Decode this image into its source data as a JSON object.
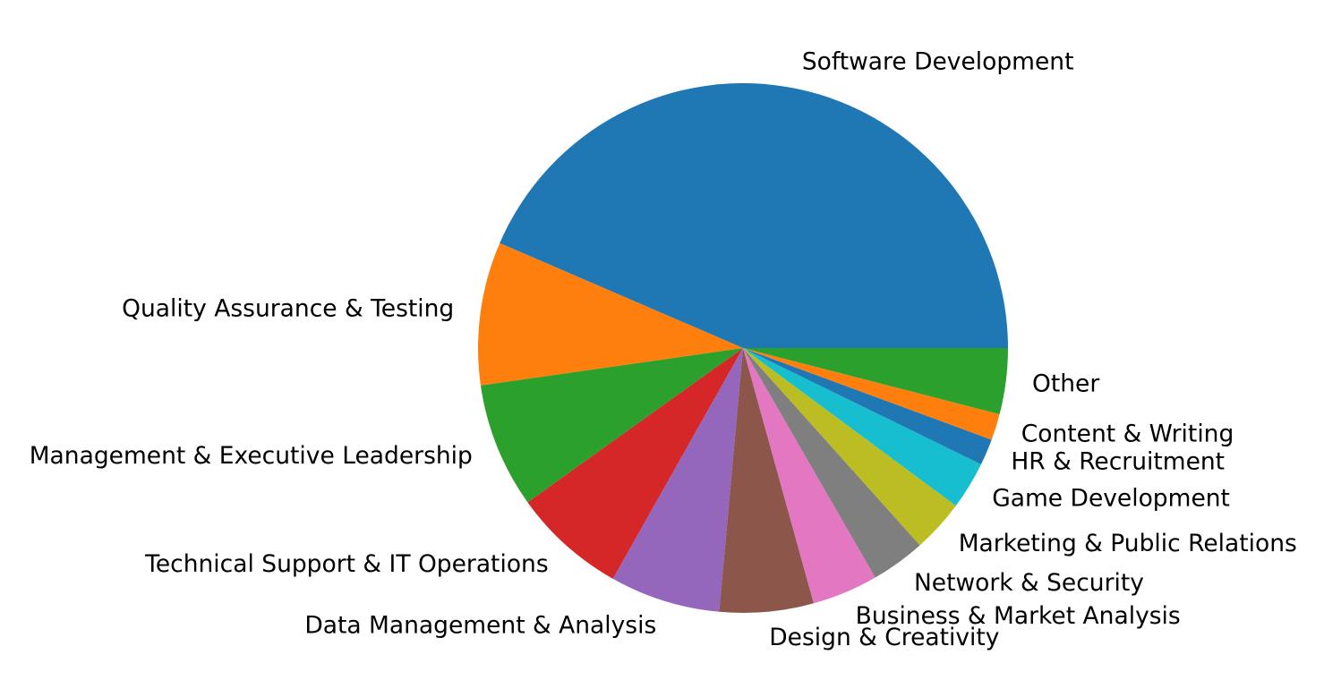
{
  "chart_data": {
    "type": "pie",
    "start_angle_deg": 0,
    "direction": "counterclockwise",
    "slices": [
      {
        "label": "Software Development",
        "value": 43.3,
        "color": "#1f77b4"
      },
      {
        "label": "Quality Assurance & Testing",
        "value": 8.7,
        "color": "#ff7f0e"
      },
      {
        "label": "Management & Executive Leadership",
        "value": 7.6,
        "color": "#2ca02c"
      },
      {
        "label": "Technical Support & IT Operations",
        "value": 6.9,
        "color": "#d62728"
      },
      {
        "label": "Data Management & Analysis",
        "value": 6.7,
        "color": "#9467bd"
      },
      {
        "label": "Design & Creativity",
        "value": 5.7,
        "color": "#8c564b"
      },
      {
        "label": "Business & Market Analysis",
        "value": 4.0,
        "color": "#e377c2"
      },
      {
        "label": "Network & Security",
        "value": 3.3,
        "color": "#7f7f7f"
      },
      {
        "label": "Marketing & Public Relations",
        "value": 3.2,
        "color": "#bcbd22"
      },
      {
        "label": "Game Development",
        "value": 2.9,
        "color": "#17becf"
      },
      {
        "label": "HR & Recruitment",
        "value": 1.6,
        "color": "#1f77b4"
      },
      {
        "label": "Content & Writing",
        "value": 1.6,
        "color": "#ff7f0e"
      },
      {
        "label": "Other",
        "value": 4.0,
        "color": "#2ca02c"
      }
    ]
  }
}
